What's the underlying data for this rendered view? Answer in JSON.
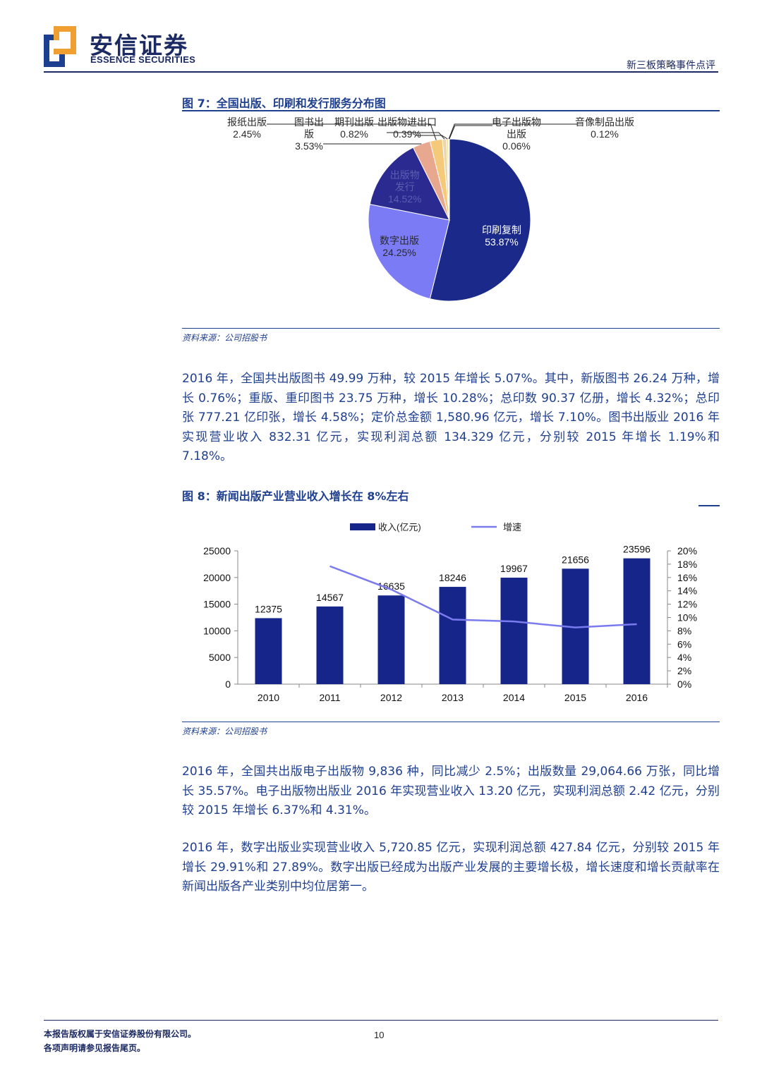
{
  "header": {
    "brand_cn": "安信证券",
    "brand_en": "ESSENCE SECURITIES",
    "report_type": "新三板策略事件点评"
  },
  "figure7": {
    "title": "图 7：全国出版、印刷和发行服务分布图",
    "source": "资料来源：公司招股书",
    "labels": {
      "newspaper": [
        "报纸出版",
        "2.45%"
      ],
      "books": [
        "图书出",
        "版",
        "3.53%"
      ],
      "periodicals": [
        "期刊出版",
        "0.82%"
      ],
      "import_export": [
        "出版物进出口",
        "0.39%"
      ],
      "electronic": [
        "电子出版物",
        "出版",
        "0.06%"
      ],
      "audio_video": [
        "音像制品出版",
        "0.12%"
      ],
      "distribution": [
        "出版物",
        "发行",
        "14.52%"
      ],
      "digital": [
        "数字出版",
        "24.25%"
      ],
      "printing": [
        "印刷复制",
        "53.87%"
      ]
    }
  },
  "para1": "2016 年，全国共出版图书 49.99 万种，较 2015 年增长 5.07%。其中，新版图书 26.24 万种，增长 0.76%；重版、重印图书 23.75 万种，增长 10.28%；总印数 90.37 亿册，增长 4.32%；总印张 777.21 亿印张，增长 4.58%；定价总金额 1,580.96 亿元，增长 7.10%。图书出版业 2016 年实现营业收入 832.31 亿元，实现利润总额 134.329 亿元，分别较 2015 年增长 1.19%和 7.18%。",
  "figure8": {
    "title": "图 8：新闻出版产业营业收入增长在 8%左右",
    "source": "资料来源：公司招股书"
  },
  "para2": "2016 年，全国共出版电子出版物 9,836 种，同比减少 2.5%；出版数量 29,064.66 万张，同比增长 35.57%。电子出版物出版业 2016 年实现营业收入 13.20 亿元，实现利润总额 2.42 亿元，分别较 2015 年增长 6.37%和 4.31%。",
  "para3": "2016 年，数字出版业实现营业收入 5,720.85 亿元，实现利润总额 427.84 亿元，分别较 2015 年增长 29.91%和 27.89%。数字出版已经成为出版产业发展的主要增长极，增长速度和增长贡献率在新闻出版各产业类别中均位居第一。",
  "footer": {
    "line1": "本报告版权属于安信证券股份有限公司。",
    "line2": "各项声明请参见报告尾页。",
    "page": "10"
  },
  "chart_data": [
    {
      "type": "pie",
      "title": "图 7：全国出版、印刷和发行服务分布图",
      "slices": [
        {
          "label": "印刷复制",
          "value": 53.87,
          "color": "#1b2a8a"
        },
        {
          "label": "数字出版",
          "value": 24.25,
          "color": "#7b7bf5"
        },
        {
          "label": "出版物发行",
          "value": 14.52,
          "color": "#2a2a90"
        },
        {
          "label": "图书出版",
          "value": 3.53,
          "color": "#e8a890"
        },
        {
          "label": "报纸出版",
          "value": 2.45,
          "color": "#f5c97a"
        },
        {
          "label": "期刊出版",
          "value": 0.82,
          "color": "#e8d8b0"
        },
        {
          "label": "出版物进出口",
          "value": 0.39,
          "color": "#f0e0a0"
        },
        {
          "label": "音像制品出版",
          "value": 0.12,
          "color": "#7fb8c8"
        },
        {
          "label": "电子出版物出版",
          "value": 0.06,
          "color": "#4a9a6a"
        }
      ]
    },
    {
      "type": "bar",
      "title": "图 8：新闻出版产业营业收入增长在 8%左右",
      "categories": [
        "2010",
        "2011",
        "2012",
        "2013",
        "2014",
        "2015",
        "2016"
      ],
      "series": [
        {
          "name": "收入(亿元)",
          "type": "bar",
          "axis": "left",
          "color": "#16258a",
          "values": [
            12375,
            14567,
            16635,
            18246,
            19967,
            21656,
            23596
          ]
        },
        {
          "name": "增速",
          "type": "line",
          "axis": "right",
          "color": "#7b7bf0",
          "values": [
            null,
            17.7,
            14.2,
            9.7,
            9.4,
            8.5,
            9.0
          ]
        }
      ],
      "ylim_left": [
        0,
        25000
      ],
      "yticks_left": [
        "0",
        "5000",
        "10000",
        "15000",
        "20000",
        "25000"
      ],
      "ylim_right": [
        0,
        20
      ],
      "yticks_right": [
        "0%",
        "2%",
        "4%",
        "6%",
        "8%",
        "10%",
        "12%",
        "14%",
        "16%",
        "18%",
        "20%"
      ],
      "legend": "top"
    }
  ]
}
